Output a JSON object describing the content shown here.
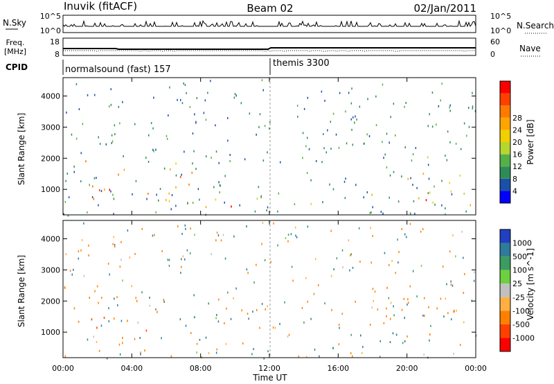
{
  "header": {
    "station": "Inuvik (fitACF)",
    "beam": "Beam 02",
    "date": "02/Jan/2011"
  },
  "summary_panels": {
    "nsky": {
      "label": "N.Sky",
      "ticks": [
        "10^5",
        "10^0"
      ],
      "right_label": "N.Search",
      "right_ticks": [
        "10^5",
        "10^0"
      ]
    },
    "freq": {
      "label_line1": "Freq.",
      "label_line2": "[MHz]",
      "ticks": [
        "18",
        "8"
      ],
      "right_label": "Nave",
      "right_ticks": [
        "60",
        "0"
      ]
    },
    "cpid": {
      "label": "CPID",
      "segments": [
        {
          "text": "normalsound (fast) 157",
          "start": "00:00"
        },
        {
          "text": "themis 3300",
          "start": "12:00"
        }
      ]
    }
  },
  "chart_data": [
    {
      "type": "heatmap",
      "title": "",
      "parameter": "Power",
      "colorbar_label": "Power [dB]",
      "ylabel": "Slant Range [km]",
      "xlabel": "Time UT",
      "x_ticks": [
        "00:00",
        "04:00",
        "08:00",
        "12:00",
        "16:00",
        "20:00",
        "00:00"
      ],
      "xlim_hours": [
        0,
        24
      ],
      "y_ticks": [
        1000,
        2000,
        3000,
        4000
      ],
      "ylim": [
        180,
        4590
      ],
      "colorbar_ticks": [
        4,
        8,
        12,
        16,
        20,
        24,
        28
      ],
      "colorbar_range": [
        0,
        30
      ],
      "colorbar_colors": [
        "#0000ff",
        "#1a50a8",
        "#2e8b57",
        "#55b04a",
        "#b6d630",
        "#f0d000",
        "#ffa500",
        "#ff7a00",
        "#ff4000",
        "#ff0000"
      ],
      "echo_regions_approx": [
        {
          "t": [
            0.0,
            7.5
          ],
          "r": [
            300,
            2100
          ],
          "value": 20
        },
        {
          "t": [
            1.5,
            3.5
          ],
          "r": [
            900,
            1700
          ],
          "value": 26
        },
        {
          "t": [
            3.5,
            4.2
          ],
          "r": [
            4300,
            4500
          ],
          "value": 10
        },
        {
          "t": [
            6.4,
            7.4
          ],
          "r": [
            900,
            1600
          ],
          "value": 27
        },
        {
          "t": [
            7.2,
            11.5
          ],
          "r": [
            300,
            1200
          ],
          "value": 17
        },
        {
          "t": [
            8.5,
            11.5
          ],
          "r": [
            350,
            750
          ],
          "value": 24
        },
        {
          "t": [
            12.0,
            17.0
          ],
          "r": [
            300,
            700
          ],
          "value": 12
        },
        {
          "t": [
            16.5,
            24.0
          ],
          "r": [
            300,
            1200
          ],
          "value": 18
        },
        {
          "t": [
            18.5,
            21.5
          ],
          "r": [
            500,
            750
          ],
          "value": 27
        },
        {
          "t": [
            20.0,
            23.8
          ],
          "r": [
            900,
            2200
          ],
          "value": 16
        }
      ]
    },
    {
      "type": "heatmap",
      "title": "",
      "parameter": "Velocity",
      "colorbar_label": "Velocity [m s^-1]",
      "ylabel": "Slant Range [km]",
      "xlabel": "Time UT",
      "x_ticks": [
        "00:00",
        "04:00",
        "08:00",
        "12:00",
        "16:00",
        "20:00",
        "00:00"
      ],
      "xlim_hours": [
        0,
        24
      ],
      "y_ticks": [
        1000,
        2000,
        3000,
        4000
      ],
      "ylim": [
        180,
        4590
      ],
      "colorbar_ticks": [
        "1000",
        "500",
        "100",
        "25",
        "-25",
        "-100",
        "-500",
        "-1000"
      ],
      "colorbar_colors": [
        "#2040c0",
        "#2e7b9a",
        "#3c9b60",
        "#6cd040",
        "#c0c0c0",
        "#ffb040",
        "#ff8000",
        "#ff4000",
        "#ff0000"
      ],
      "echo_regions_approx": [
        {
          "t": [
            0.0,
            6.0
          ],
          "r": [
            300,
            2100
          ],
          "velocity": -300
        },
        {
          "t": [
            6.0,
            9.0
          ],
          "r": [
            500,
            2000
          ],
          "velocity": 150
        },
        {
          "t": [
            8.0,
            12.0
          ],
          "r": [
            300,
            700
          ],
          "velocity": 60
        },
        {
          "t": [
            3.4,
            4.0
          ],
          "r": [
            4200,
            4500
          ],
          "velocity": 0
        },
        {
          "t": [
            17.0,
            21.5
          ],
          "r": [
            300,
            1200
          ],
          "velocity": 80
        },
        {
          "t": [
            17.5,
            23.8
          ],
          "r": [
            900,
            2500
          ],
          "velocity": -250
        }
      ]
    }
  ]
}
